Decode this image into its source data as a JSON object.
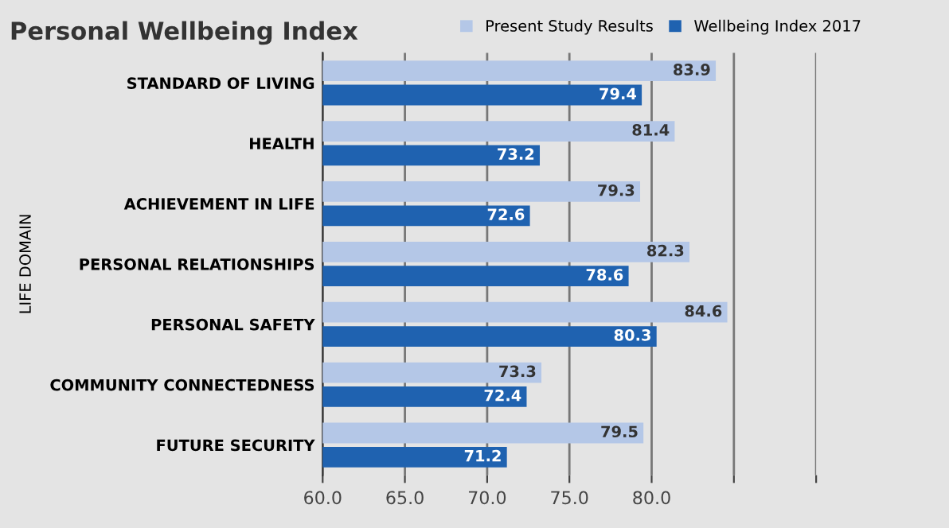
{
  "chart_data": {
    "type": "bar",
    "orientation": "horizontal",
    "title": "Personal Wellbeing Index",
    "ylabel": "LIFE DOMAIN",
    "categories": [
      "STANDARD OF LIVING",
      "HEALTH",
      "ACHIEVEMENT IN LIFE",
      "PERSONAL RELATIONSHIPS",
      "PERSONAL SAFETY",
      "COMMUNITY CONNECTEDNESS",
      "FUTURE SECURITY"
    ],
    "series": [
      {
        "name": "Present Study Results",
        "color": "#b4c7e7",
        "values": [
          83.9,
          81.4,
          79.3,
          82.3,
          84.6,
          73.3,
          79.5
        ]
      },
      {
        "name": "Wellbeing Index 2017",
        "color": "#1f62b0",
        "values": [
          79.4,
          73.2,
          72.6,
          78.6,
          80.3,
          72.4,
          71.2
        ]
      }
    ],
    "xlim": [
      60,
      90
    ],
    "xticks": [
      {
        "value": 60,
        "label": "60.0"
      },
      {
        "value": 65,
        "label": "65.0"
      },
      {
        "value": 70,
        "label": "70.0"
      },
      {
        "value": 75,
        "label": "75.0"
      },
      {
        "value": 80,
        "label": "80.0"
      },
      {
        "value": 85,
        "label": null
      },
      {
        "value": 90,
        "label": null
      }
    ],
    "data_labels": true,
    "grid": "x",
    "legend": "top right"
  }
}
